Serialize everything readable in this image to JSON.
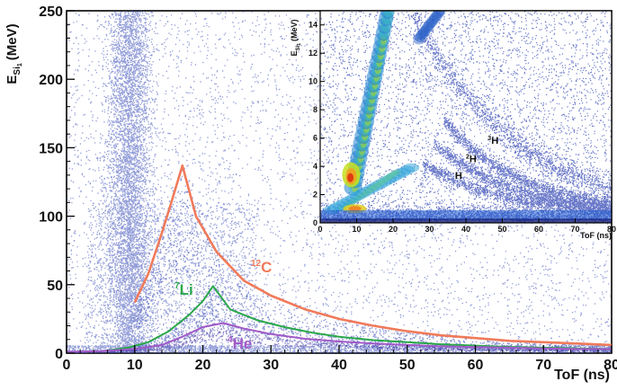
{
  "chart_data": [
    {
      "type": "scatter",
      "xlabel": "ToF (ns)",
      "ylabel_main": "E",
      "ylabel_sub": "Si",
      "ylabel_subsub": "1",
      "ylabel_unit": "(MeV)",
      "xlim": [
        0,
        80
      ],
      "ylim": [
        0,
        250
      ],
      "x_ticks": [
        0,
        10,
        20,
        30,
        40,
        50,
        60,
        70,
        80
      ],
      "y_ticks": [
        0,
        50,
        100,
        150,
        200,
        250
      ],
      "point_color": "#3b4fb8",
      "series": [
        {
          "name": "12C",
          "label_mass": "12",
          "label_element": "C",
          "color": "#f07a5a",
          "x": [
            10,
            12,
            14,
            15.5,
            17,
            19,
            22,
            26,
            30,
            35,
            40,
            45,
            50,
            55,
            60,
            65,
            70,
            75,
            80
          ],
          "values": [
            37,
            58,
            88,
            112,
            137,
            100,
            74,
            53,
            42,
            32,
            25,
            20,
            16,
            13,
            11,
            9,
            8,
            7,
            6
          ]
        },
        {
          "name": "7Li",
          "label_mass": "7",
          "label_element": "Li",
          "color": "#2aa84a",
          "x": [
            6,
            9,
            12,
            15,
            18,
            20,
            21.5,
            24,
            28,
            32,
            36,
            40,
            45,
            50,
            55,
            60,
            65,
            70,
            75,
            80
          ],
          "values": [
            2,
            4,
            8,
            16,
            28,
            38,
            49,
            32,
            24,
            19,
            15,
            12,
            9.5,
            8,
            6.5,
            5.5,
            4.5,
            4,
            3.5,
            3
          ]
        },
        {
          "name": "4He",
          "label_mass": "4",
          "label_element": "He",
          "color": "#a05ac8",
          "x": [
            0,
            5,
            10,
            14,
            17,
            20,
            23,
            26,
            30,
            35,
            40,
            45,
            50,
            55,
            60,
            65,
            70,
            75,
            80
          ],
          "values": [
            1,
            1.5,
            3,
            6,
            12,
            19,
            22,
            18,
            14,
            10.5,
            8.5,
            7,
            6,
            5,
            4.5,
            4,
            3.5,
            3,
            3
          ]
        }
      ]
    },
    {
      "type": "heatmap",
      "xlabel": "ToF (ns)",
      "ylabel_main": "E",
      "ylabel_sub": "Si",
      "ylabel_subsub": "1",
      "ylabel_unit": "(MeV)",
      "xlim": [
        0,
        80
      ],
      "ylim": [
        0,
        15
      ],
      "x_ticks": [
        0,
        10,
        20,
        30,
        40,
        50,
        60,
        70,
        80
      ],
      "y_ticks": [
        0,
        2,
        4,
        6,
        8,
        10,
        12,
        14
      ],
      "annotations": [
        {
          "mass": "",
          "element": "H",
          "x": 37,
          "y": 3.1
        },
        {
          "mass": "2",
          "element": "H",
          "x": 40,
          "y": 4.3
        },
        {
          "mass": "3",
          "element": "H",
          "x": 46,
          "y": 5.6
        }
      ]
    }
  ]
}
